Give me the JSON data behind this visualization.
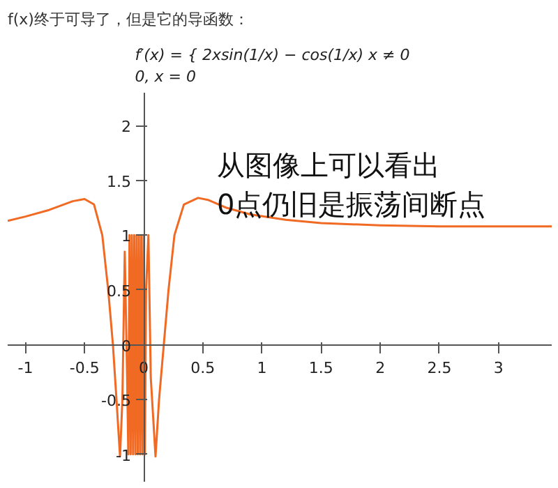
{
  "chart_data": {
    "type": "line",
    "title": "f(x)终于可导了，但是它的导函数：",
    "subtitle": "f′(x) = { 2xsin(1/x) − cos(1/x)    x ≠ 0\n             0,                                  x = 0",
    "annotations": [
      "从图像上可以看出\n0点仍旧是振荡间断点"
    ],
    "x": [
      -1.15,
      -1.0,
      -0.8,
      -0.6,
      -0.5,
      -0.42,
      -0.35,
      -0.3,
      -0.26,
      -0.23,
      -0.2,
      -0.18,
      -0.16,
      -0.14,
      -0.13,
      -0.12,
      -0.11,
      -0.1,
      -0.09,
      -0.08,
      -0.07,
      -0.06,
      -0.05,
      -0.04,
      -0.03,
      -0.02,
      -0.01,
      0.0,
      0.01,
      0.02,
      0.04,
      0.06,
      0.1,
      0.13,
      0.17,
      0.21,
      0.26,
      0.34,
      0.46,
      0.55,
      0.7,
      0.9,
      1.2,
      1.5,
      2.0,
      2.5,
      3.0,
      3.45
    ],
    "series": [
      {
        "color": "#f06a23",
        "values": [
          1.13,
          1.17,
          1.23,
          1.31,
          1.33,
          1.28,
          1.0,
          0.5,
          0,
          -0.5,
          -1.02,
          -0.5,
          0.85,
          -0.3,
          -1.0,
          1.0,
          -1.0,
          1.0,
          -1.0,
          1.0,
          -1.0,
          1.0,
          -1.0,
          1.0,
          -1.0,
          1.0,
          -1.0,
          1.0,
          -1.0,
          0.5,
          1.0,
          -0.3,
          -1.02,
          -0.5,
          0,
          0.5,
          1.0,
          1.28,
          1.34,
          1.32,
          1.25,
          1.19,
          1.14,
          1.11,
          1.09,
          1.08,
          1.08,
          1.08
        ]
      }
    ],
    "xlim": [
      -1.15,
      3.45
    ],
    "ylim": [
      -1.25,
      2.3
    ],
    "xticks": [
      -1,
      -0.5,
      0,
      0.5,
      1,
      1.5,
      2,
      2.5,
      3
    ],
    "yticks": [
      -1,
      -0.5,
      0,
      0.5,
      1,
      1.5,
      2
    ],
    "grid": false,
    "marker": "none",
    "line_style": "solid"
  }
}
